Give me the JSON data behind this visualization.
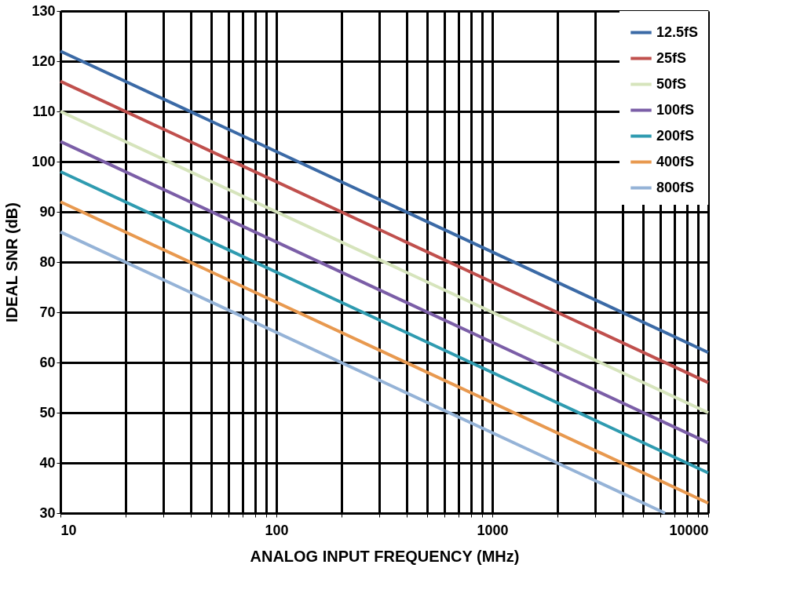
{
  "chart_data": {
    "type": "line",
    "xlabel": "ANALOG INPUT FREQUENCY (MHz)",
    "ylabel": "IDEAL SNR (dB)",
    "log": "x",
    "xlim": [
      10,
      10000
    ],
    "ylim": [
      30,
      130
    ],
    "xticks": [
      10,
      {
        "value": 20,
        "label": null
      },
      {
        "value": 30,
        "label": null
      },
      {
        "value": 40,
        "label": null
      },
      {
        "value": 50,
        "label": null
      },
      {
        "value": 60,
        "label": null
      },
      {
        "value": 70,
        "label": null
      },
      {
        "value": 80,
        "label": null
      },
      {
        "value": 90,
        "label": null
      },
      100,
      {
        "value": 200,
        "label": null
      },
      {
        "value": 300,
        "label": null
      },
      {
        "value": 400,
        "label": null
      },
      {
        "value": 500,
        "label": null
      },
      {
        "value": 600,
        "label": null
      },
      {
        "value": 700,
        "label": null
      },
      {
        "value": 800,
        "label": null
      },
      {
        "value": 900,
        "label": null
      },
      1000,
      {
        "value": 2000,
        "label": null
      },
      {
        "value": 3000,
        "label": null
      },
      {
        "value": 4000,
        "label": null
      },
      {
        "value": 5000,
        "label": null
      },
      {
        "value": 6000,
        "label": null
      },
      {
        "value": 7000,
        "label": null
      },
      {
        "value": 8000,
        "label": null
      },
      {
        "value": 9000,
        "label": null
      },
      10000
    ],
    "yticks": [
      30,
      40,
      50,
      60,
      70,
      80,
      90,
      100,
      110,
      120,
      130
    ],
    "grid": true,
    "legend": "top right",
    "line_style": "solid",
    "marker": "none",
    "series": [
      {
        "name": "12.5fS",
        "color": "#3b6aa6",
        "x": [
          10,
          10000
        ],
        "values": [
          122,
          62
        ]
      },
      {
        "name": "25fS",
        "color": "#c0504d",
        "x": [
          10,
          10000
        ],
        "values": [
          116,
          56
        ]
      },
      {
        "name": "50fS",
        "color": "#d6e4bc",
        "x": [
          10,
          10000
        ],
        "values": [
          110,
          50
        ]
      },
      {
        "name": "100fS",
        "color": "#7b5ea7",
        "x": [
          10,
          10000
        ],
        "values": [
          104,
          44
        ]
      },
      {
        "name": "200fS",
        "color": "#2f9bb0",
        "x": [
          10,
          10000
        ],
        "values": [
          98,
          38
        ]
      },
      {
        "name": "400fS",
        "color": "#e8994f",
        "x": [
          10,
          10000
        ],
        "values": [
          92,
          32
        ]
      },
      {
        "name": "800fS",
        "color": "#95b3d7",
        "x": [
          10,
          6310
        ],
        "values": [
          86,
          30
        ]
      }
    ]
  }
}
